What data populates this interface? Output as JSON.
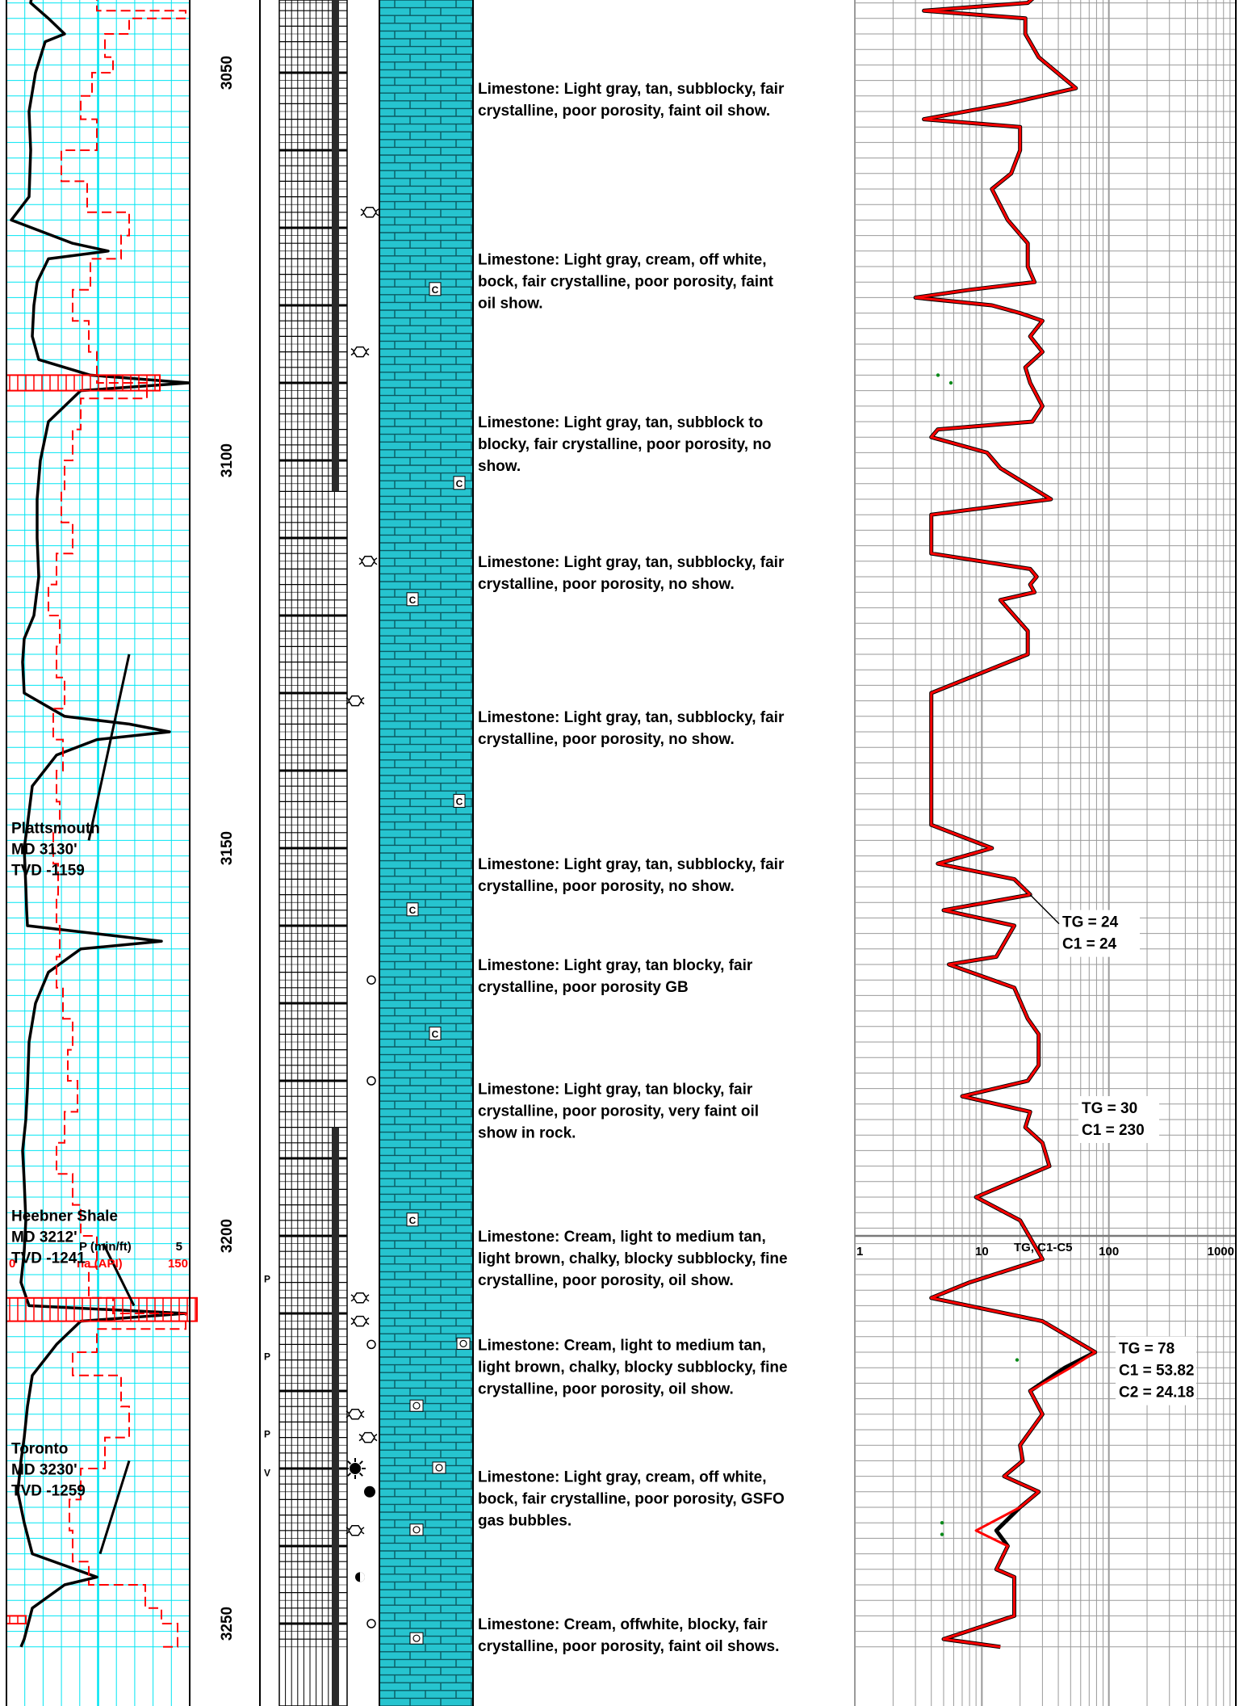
{
  "log": {
    "depth_range": [
      3033,
      3253
    ],
    "depth_ticks": [
      3050,
      3100,
      3150,
      3200,
      3250
    ],
    "track1": {
      "curve_labels": [
        {
          "scale_right": "5",
          "name": "P (min/ft)",
          "color": "#000000"
        },
        {
          "scale_left": "0",
          "scale_right": "150",
          "name": "na (API)",
          "color": "#ff0000"
        }
      ]
    },
    "formations": [
      {
        "name": "Plattsmouth",
        "md": "MD 3130'",
        "tvd": "TVD -1159",
        "depth": 3151
      },
      {
        "name": "Heebner Shale",
        "md": "MD 3212'",
        "tvd": "TVD -1241",
        "depth": 3201
      },
      {
        "name": "Toronto",
        "md": "MD 3230'",
        "tvd": "TVD -1259",
        "depth": 3231
      }
    ],
    "descriptions": [
      {
        "depth": 3052,
        "lines": [
          "Limestone: Light gray, tan, subblocky, fair",
          "crystalline, poor porosity, faint oil show."
        ]
      },
      {
        "depth": 3074,
        "lines": [
          "Limestone: Light gray, cream, off white,",
          "bock, fair crystalline, poor porosity, faint",
          "oil show."
        ]
      },
      {
        "depth": 3095,
        "lines": [
          "Limestone: Light gray, tan, subblock to",
          "blocky, fair crystalline, poor porosity, no",
          "show."
        ]
      },
      {
        "depth": 3113,
        "lines": [
          "Limestone: Light gray, tan, subblocky, fair",
          "crystalline, poor porosity, no show."
        ]
      },
      {
        "depth": 3133,
        "lines": [
          "Limestone: Light gray, tan, subblocky, fair",
          "crystalline, poor porosity, no show."
        ]
      },
      {
        "depth": 3152,
        "lines": [
          "Limestone: Light gray, tan, subblocky, fair",
          "crystalline, poor porosity, no show."
        ]
      },
      {
        "depth": 3165,
        "lines": [
          "Limestone: Light gray, tan blocky, fair",
          "crystalline, poor porosity GB"
        ]
      },
      {
        "depth": 3181,
        "lines": [
          "Limestone: Light gray, tan blocky, fair",
          "crystalline, poor porosity, very faint oil",
          "show in rock."
        ]
      },
      {
        "depth": 3200,
        "lines": [
          "Limestone: Cream, light to medium tan,",
          "light brown, chalky, blocky subblocky, fine",
          "crystalline, poor porosity,  oil show."
        ]
      },
      {
        "depth": 3214,
        "lines": [
          "Limestone: Cream, light to medium tan,",
          "light brown, chalky, blocky subblocky, fine",
          "crystalline, poor porosity,  oil show."
        ]
      },
      {
        "depth": 3231,
        "lines": [
          "Limestone: Light gray, cream, off white,",
          "bock, fair crystalline, poor porosity, GSFO",
          "gas bubbles."
        ]
      },
      {
        "depth": 3250,
        "lines": [
          "Limestone: Cream, offwhite, blocky, fair",
          "crystalline, poor porosity, faint oil shows."
        ]
      }
    ],
    "gas_track": {
      "title": "TG, C1-C5",
      "scale_labels": [
        "1",
        "10",
        "100",
        "1000"
      ],
      "annotations": [
        {
          "depth": 3161,
          "lines": [
            "TG = 24",
            "C1 = 24"
          ]
        },
        {
          "depth": 3185,
          "lines": [
            "TG = 30",
            "C1 = 230"
          ]
        },
        {
          "depth": 3216,
          "lines": [
            "TG = 78",
            "C1 = 53.82",
            "C2 = 24.18"
          ]
        }
      ]
    },
    "symbols": {
      "accessory": "cloud-icon",
      "porosity": "circle-icon"
    },
    "colors": {
      "lithology_fill": "#26c4cf",
      "grid_cyan": "#00e5f2",
      "gas_black": "#000000",
      "gas_red": "#ff0000",
      "grid_gray": "#9a9a9a"
    }
  },
  "chart_data": {
    "type": "line",
    "title": "",
    "ylabel": "",
    "ylim": [
      3253,
      3033
    ],
    "series": [
      {
        "name": "TG, C1-C5",
        "x_scale": "log",
        "xlim": [
          1,
          1000
        ],
        "points": [
          [
            3033,
            30
          ],
          [
            3036,
            30
          ],
          [
            3038,
            27
          ],
          [
            3040,
            27
          ],
          [
            3041,
            23
          ],
          [
            3042,
            3.5
          ],
          [
            3043,
            22
          ],
          [
            3045,
            22
          ],
          [
            3048,
            28
          ],
          [
            3052,
            55
          ],
          [
            3054,
            16
          ],
          [
            3056,
            3.5
          ],
          [
            3057,
            20
          ],
          [
            3060,
            20
          ],
          [
            3063,
            17
          ],
          [
            3065,
            12
          ],
          [
            3069,
            16
          ],
          [
            3072,
            23
          ],
          [
            3075,
            23
          ],
          [
            3077,
            26
          ],
          [
            3078,
            8
          ],
          [
            3079,
            3
          ],
          [
            3080,
            12
          ],
          [
            3081,
            20
          ],
          [
            3082,
            30
          ],
          [
            3084,
            24
          ],
          [
            3086,
            30
          ],
          [
            3088,
            22
          ],
          [
            3090,
            24
          ],
          [
            3093,
            30
          ],
          [
            3095,
            25
          ],
          [
            3096,
            4.5
          ],
          [
            3097,
            4
          ],
          [
            3099,
            11
          ],
          [
            3101,
            14
          ],
          [
            3105,
            35
          ],
          [
            3107,
            4
          ],
          [
            3112,
            4
          ],
          [
            3114,
            24
          ],
          [
            3115,
            27
          ],
          [
            3116,
            24
          ],
          [
            3117,
            26
          ],
          [
            3118,
            14
          ],
          [
            3122,
            23
          ],
          [
            3125,
            23
          ],
          [
            3130,
            4
          ],
          [
            3134,
            4
          ],
          [
            3147,
            4
          ],
          [
            3150,
            12
          ],
          [
            3152,
            4.5
          ],
          [
            3154,
            18
          ],
          [
            3156,
            24
          ],
          [
            3158,
            5
          ],
          [
            3160,
            18
          ],
          [
            3164,
            13
          ],
          [
            3165,
            5.5
          ],
          [
            3168,
            18
          ],
          [
            3172,
            23
          ],
          [
            3174,
            28
          ],
          [
            3178,
            28
          ],
          [
            3180,
            23
          ],
          [
            3182,
            7
          ],
          [
            3184,
            24
          ],
          [
            3186,
            22
          ],
          [
            3188,
            30
          ],
          [
            3191,
            34
          ],
          [
            3195,
            9
          ],
          [
            3198,
            20
          ],
          [
            3203,
            30
          ],
          [
            3206,
            8
          ],
          [
            3208,
            4
          ],
          [
            3211,
            30
          ],
          [
            3215,
            78
          ],
          [
            3217,
            45
          ],
          [
            3220,
            24
          ],
          [
            3223,
            30
          ],
          [
            3227,
            20
          ],
          [
            3229,
            21
          ],
          [
            3231,
            15
          ],
          [
            3233,
            28
          ],
          [
            3235,
            20
          ],
          [
            3238,
            13
          ],
          [
            3240,
            16
          ],
          [
            3243,
            13
          ],
          [
            3244,
            18
          ],
          [
            3249,
            18
          ],
          [
            3252,
            5
          ],
          [
            3253,
            14
          ]
        ]
      }
    ]
  }
}
